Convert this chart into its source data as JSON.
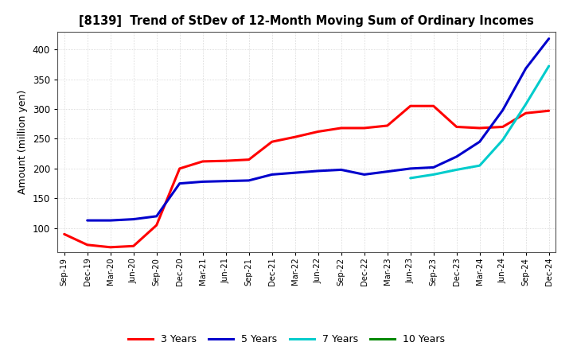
{
  "title": "[8139]  Trend of StDev of 12-Month Moving Sum of Ordinary Incomes",
  "ylabel": "Amount (million yen)",
  "background_color": "#ffffff",
  "grid_color": "#aaaaaa",
  "ylim": [
    60,
    430
  ],
  "yticks": [
    100,
    150,
    200,
    250,
    300,
    350,
    400
  ],
  "x_labels": [
    "Sep-19",
    "Dec-19",
    "Mar-20",
    "Jun-20",
    "Sep-20",
    "Dec-20",
    "Mar-21",
    "Jun-21",
    "Sep-21",
    "Dec-21",
    "Mar-22",
    "Jun-22",
    "Sep-22",
    "Dec-22",
    "Mar-23",
    "Jun-23",
    "Sep-23",
    "Dec-23",
    "Mar-24",
    "Jun-24",
    "Sep-24",
    "Dec-24"
  ],
  "series": {
    "3 Years": {
      "color": "#ff0000",
      "linewidth": 2.2,
      "values": [
        90,
        72,
        68,
        70,
        105,
        200,
        212,
        213,
        215,
        245,
        253,
        262,
        268,
        268,
        272,
        305,
        305,
        270,
        268,
        270,
        293,
        297
      ]
    },
    "5 Years": {
      "color": "#0000cc",
      "linewidth": 2.2,
      "values": [
        null,
        113,
        113,
        115,
        120,
        175,
        178,
        179,
        180,
        190,
        193,
        196,
        198,
        190,
        195,
        200,
        202,
        220,
        245,
        298,
        368,
        418
      ]
    },
    "7 Years": {
      "color": "#00cccc",
      "linewidth": 2.2,
      "values": [
        null,
        null,
        null,
        null,
        null,
        null,
        null,
        null,
        null,
        null,
        null,
        null,
        null,
        null,
        null,
        184,
        190,
        198,
        205,
        248,
        308,
        372
      ]
    },
    "10 Years": {
      "color": "#008800",
      "linewidth": 2.2,
      "values": [
        null,
        null,
        null,
        null,
        null,
        null,
        null,
        null,
        null,
        null,
        null,
        null,
        null,
        null,
        null,
        null,
        null,
        null,
        null,
        null,
        null,
        null
      ]
    }
  },
  "legend_labels": [
    "3 Years",
    "5 Years",
    "7 Years",
    "10 Years"
  ],
  "legend_colors": [
    "#ff0000",
    "#0000cc",
    "#00cccc",
    "#008800"
  ]
}
